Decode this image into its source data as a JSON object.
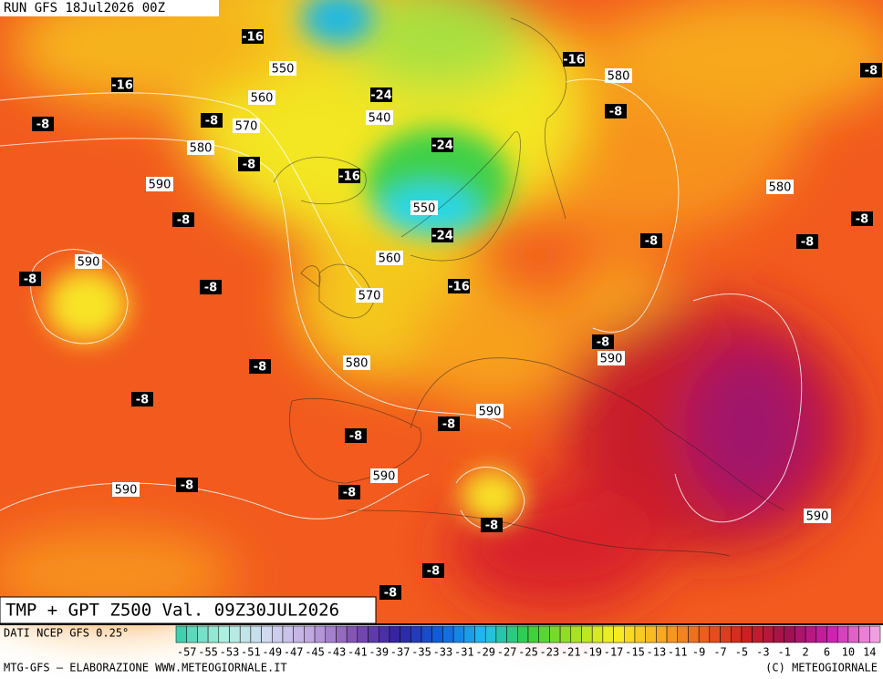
{
  "header": {
    "run": "RUN GFS 18Jul2026 00Z",
    "title": "TMP + GPT Z500 Val. 09Z30JUL2026"
  },
  "footer": {
    "source": "DATI NCEP GFS 0.25°",
    "credits": "MTG-GFS — ELABORAZIONE WWW.METEOGIORNALE.IT",
    "copyright": "(C) METEOGIORNALE"
  },
  "legend": {
    "labels": [
      -57,
      -55,
      -53,
      -51,
      -49,
      -47,
      -45,
      -43,
      -41,
      -39,
      -37,
      -35,
      -33,
      -31,
      -29,
      -27,
      -25,
      -23,
      -21,
      -19,
      -17,
      -15,
      -13,
      -11,
      -9,
      -7,
      -5,
      -3,
      -1,
      2,
      6,
      10,
      14
    ]
  },
  "isotherm_labels": [
    -16,
    -16,
    -8,
    -8,
    -8,
    -8,
    -8,
    -8,
    -8,
    -8,
    -16,
    -24,
    -24,
    -24,
    -16,
    -16,
    -8,
    -8,
    -8,
    -8,
    -8,
    -8,
    -8,
    -8,
    -8,
    -8,
    -8,
    -8,
    -8
  ],
  "height_labels": [
    550,
    560,
    570,
    540,
    580,
    590,
    550,
    560,
    570,
    590,
    580,
    580,
    580,
    590,
    590,
    590,
    590,
    590
  ]
}
